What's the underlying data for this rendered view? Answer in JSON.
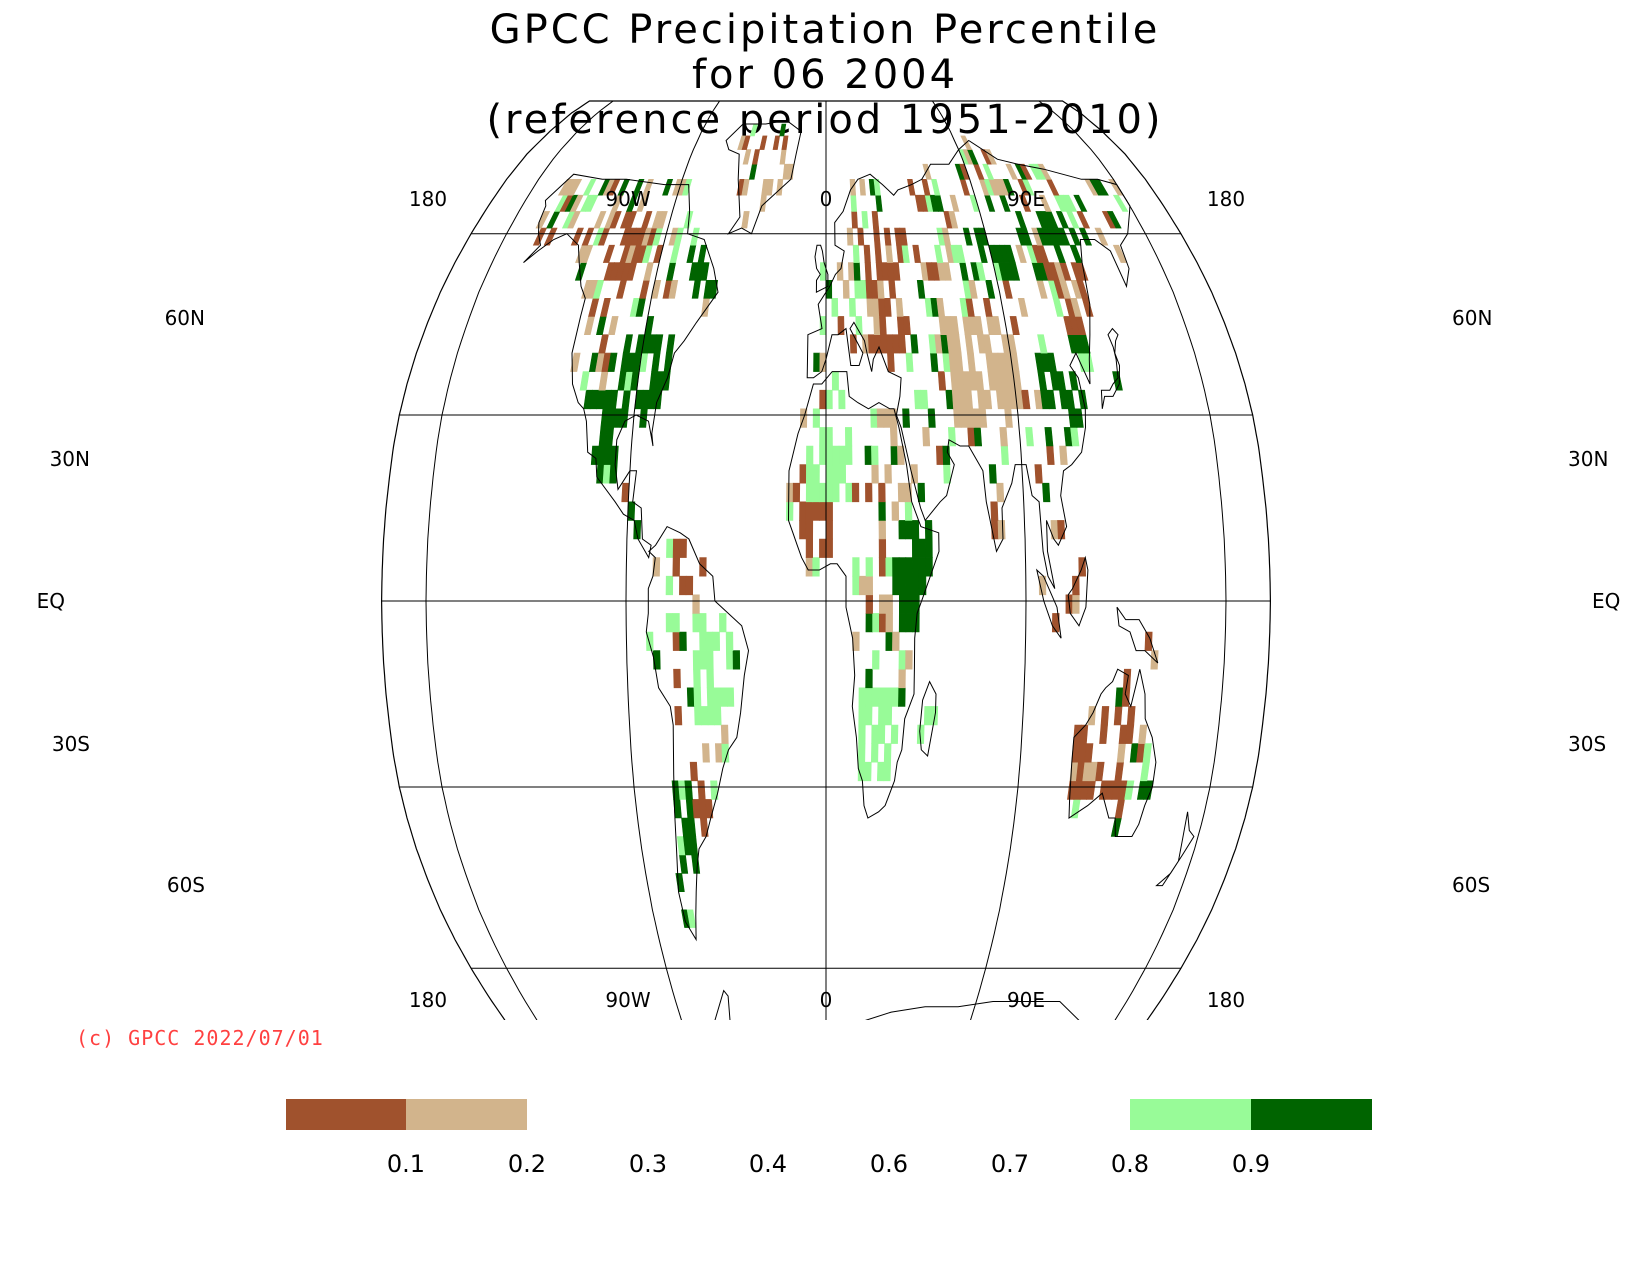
{
  "title": {
    "line1": "GPCC Precipitation Percentile",
    "line2": "for 06 2004",
    "line3": "(reference period 1951-2010)"
  },
  "map": {
    "projection": "Robinson",
    "lon_labels": [
      "180",
      "90W",
      "0",
      "90E",
      "180"
    ],
    "lat_labels": [
      "60N",
      "30N",
      "EQ",
      "30S",
      "60S"
    ]
  },
  "copyright": "(c) GPCC 2022/07/01",
  "legend": {
    "tick_labels": [
      "0.1",
      "0.2",
      "0.3",
      "0.4",
      "0.6",
      "0.7",
      "0.8",
      "0.9"
    ],
    "colors": {
      "below_0.1": "#a0522d",
      "0.1_0.2": "#d2b48c",
      "0.8_0.9": "#98fb98",
      "above_0.9": "#006400"
    }
  },
  "colors": {
    "very_dry": "#a0522d",
    "dry": "#d2b48c",
    "wet": "#98fb98",
    "very_wet": "#006400",
    "copyright": "#ff4040"
  }
}
